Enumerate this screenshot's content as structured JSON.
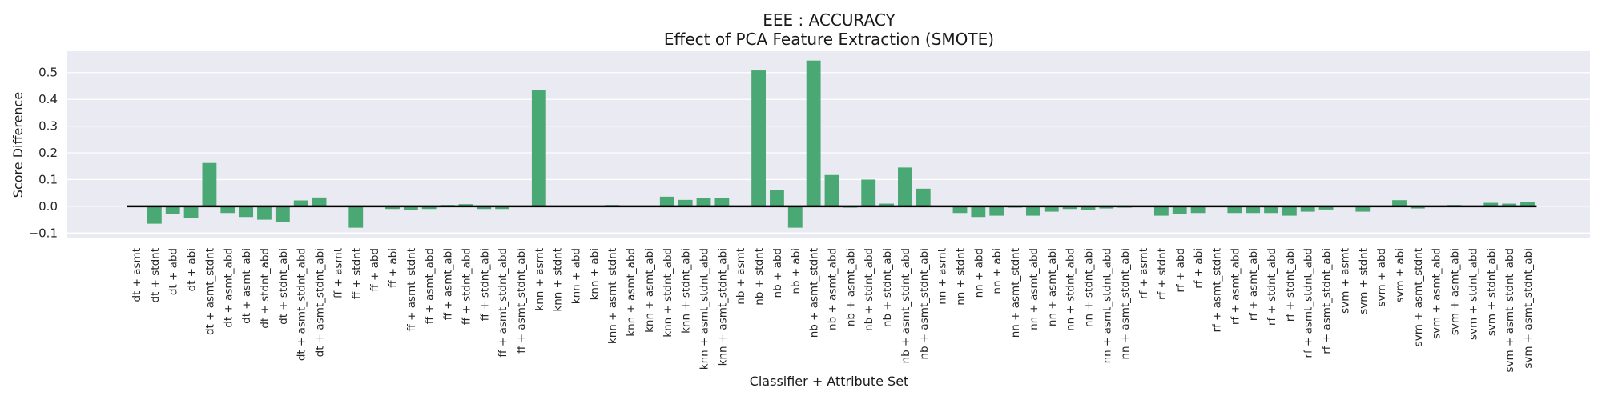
{
  "chart_data": {
    "type": "bar",
    "title": "EEE : ACCURACY",
    "subtitle": "Effect of PCA Feature Extraction (SMOTE)",
    "xlabel": "Classifier + Attribute Set",
    "ylabel": "Score Difference",
    "ylim": [
      -0.12,
      0.58
    ],
    "yticks": [
      -0.1,
      0.0,
      0.1,
      0.2,
      0.3,
      0.4,
      0.5
    ],
    "ytick_labels": [
      "−0.1",
      "0.0",
      "0.1",
      "0.2",
      "0.3",
      "0.4",
      "0.5"
    ],
    "grid": true,
    "zero_line": true,
    "bar_color": "#4aa874",
    "background_color": "#eaeaf2",
    "categories": [
      "dt + asmt",
      "dt + stdnt",
      "dt + abd",
      "dt + abi",
      "dt + asmt_stdnt",
      "dt + asmt_abd",
      "dt + asmt_abi",
      "dt + stdnt_abd",
      "dt + stdnt_abi",
      "dt + asmt_stdnt_abd",
      "dt + asmt_stdnt_abi",
      "ff + asmt",
      "ff + stdnt",
      "ff + abd",
      "ff + abi",
      "ff + asmt_stdnt",
      "ff + asmt_abd",
      "ff + asmt_abi",
      "ff + stdnt_abd",
      "ff + stdnt_abi",
      "ff + asmt_stdnt_abd",
      "ff + asmt_stdnt_abi",
      "knn + asmt",
      "knn + stdnt",
      "knn + abd",
      "knn + abi",
      "knn + asmt_stdnt",
      "knn + asmt_abd",
      "knn + asmt_abi",
      "knn + stdnt_abd",
      "knn + stdnt_abi",
      "knn + asmt_stdnt_abd",
      "knn + asmt_stdnt_abi",
      "nb + asmt",
      "nb + stdnt",
      "nb + abd",
      "nb + abi",
      "nb + asmt_stdnt",
      "nb + asmt_abd",
      "nb + asmt_abi",
      "nb + stdnt_abd",
      "nb + stdnt_abi",
      "nb + asmt_stdnt_abd",
      "nb + asmt_stdnt_abi",
      "nn + asmt",
      "nn + stdnt",
      "nn + abd",
      "nn + abi",
      "nn + asmt_stdnt",
      "nn + asmt_abd",
      "nn + asmt_abi",
      "nn + stdnt_abd",
      "nn + stdnt_abi",
      "nn + asmt_stdnt_abd",
      "nn + asmt_stdnt_abi",
      "rf + asmt",
      "rf + stdnt",
      "rf + abd",
      "rf + abi",
      "rf + asmt_stdnt",
      "rf + asmt_abd",
      "rf + asmt_abi",
      "rf + stdnt_abd",
      "rf + stdnt_abi",
      "rf + asmt_stdnt_abd",
      "rf + asmt_stdnt_abi",
      "svm + asmt",
      "svm + stdnt",
      "svm + abd",
      "svm + abi",
      "svm + asmt_stdnt",
      "svm + asmt_abd",
      "svm + asmt_abi",
      "svm + stdnt_abd",
      "svm + stdnt_abi",
      "svm + asmt_stdnt_abd",
      "svm + asmt_stdnt_abi"
    ],
    "values": [
      0.0,
      -0.065,
      -0.03,
      -0.045,
      0.162,
      -0.025,
      -0.04,
      -0.05,
      -0.06,
      0.022,
      0.033,
      0.0,
      -0.08,
      0.0,
      -0.01,
      -0.015,
      -0.01,
      0.005,
      0.008,
      -0.01,
      -0.01,
      0.0,
      0.435,
      0.0,
      0.0,
      0.0,
      0.005,
      0.0,
      0.0,
      0.036,
      0.024,
      0.03,
      0.032,
      0.0,
      0.508,
      0.06,
      -0.08,
      0.545,
      0.117,
      -0.005,
      0.1,
      0.01,
      0.145,
      0.066,
      0.0,
      -0.025,
      -0.04,
      -0.035,
      -0.005,
      -0.035,
      -0.02,
      -0.01,
      -0.015,
      -0.008,
      -0.005,
      0.0,
      -0.035,
      -0.03,
      -0.025,
      0.0,
      -0.025,
      -0.025,
      -0.025,
      -0.035,
      -0.02,
      -0.012,
      0.0,
      -0.02,
      0.0,
      0.023,
      -0.008,
      0.0,
      0.005,
      0.0,
      0.013,
      0.01,
      0.016
    ]
  }
}
